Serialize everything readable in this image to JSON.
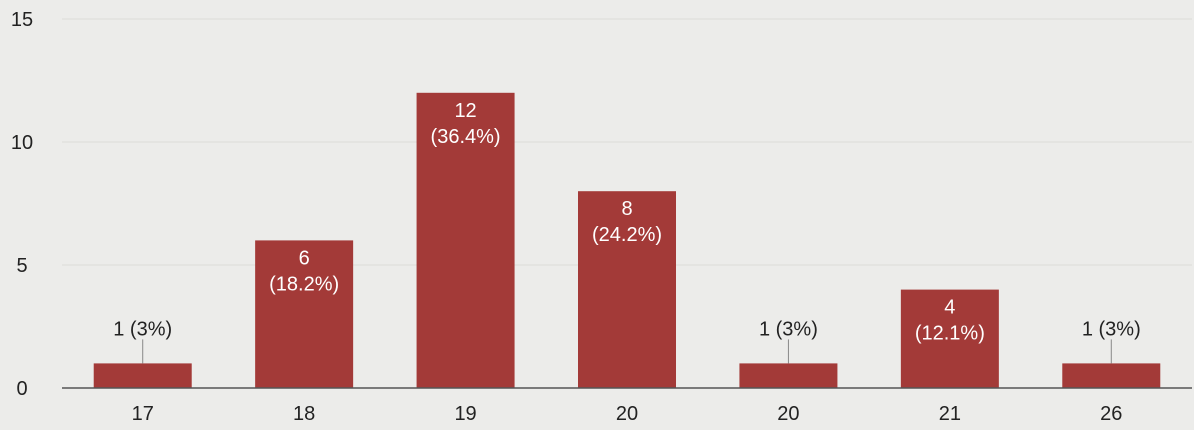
{
  "chart_data": {
    "type": "bar",
    "categories": [
      "17",
      "18",
      "19",
      "20",
      "20",
      "21",
      "26"
    ],
    "values": [
      1,
      6,
      12,
      8,
      1,
      4,
      1
    ],
    "data_labels": [
      [
        "1 (3%)"
      ],
      [
        "6",
        "(18.2%)"
      ],
      [
        "12",
        "(36.4%)"
      ],
      [
        "8",
        "(24.2%)"
      ],
      [
        "1 (3%)"
      ],
      [
        "4",
        "(12.1%)"
      ],
      [
        "1 (3%)"
      ]
    ],
    "y_ticks": [
      "0",
      "5",
      "10",
      "15"
    ],
    "ylim": [
      0,
      15
    ],
    "grid": true,
    "legend": "none",
    "bar_color": "#a33a38",
    "axis_color": "#555555",
    "grid_color": "#dcdcd8",
    "inside_label_color": "#ffffff",
    "outside_label_color": "#222222",
    "title": "",
    "xlabel": "",
    "ylabel": ""
  }
}
